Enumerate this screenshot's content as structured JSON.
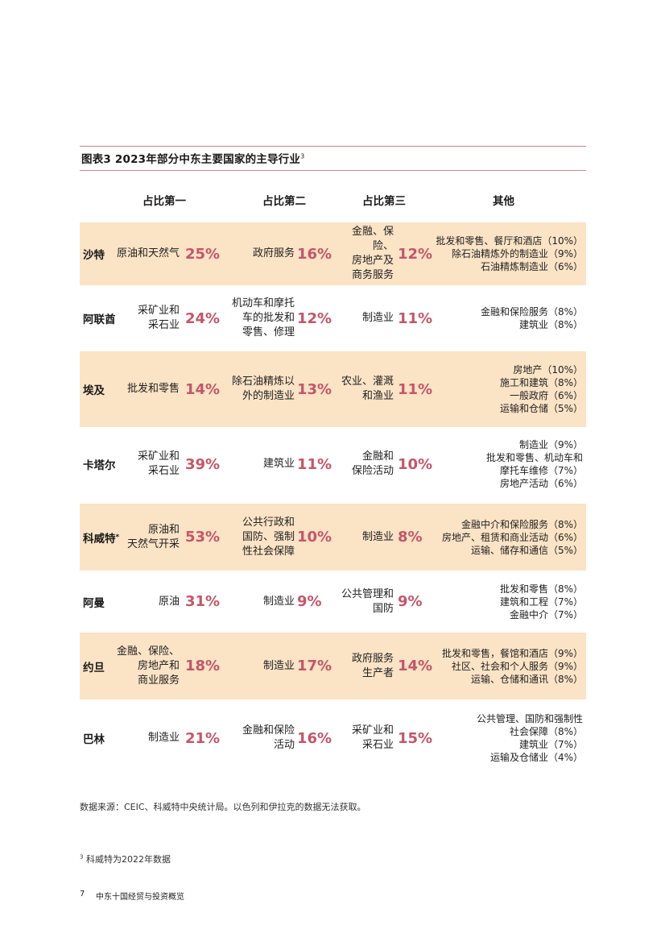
{
  "figure": {
    "title": "图表3  2023年部分中东主要国家的主导行业",
    "title_note": "3"
  },
  "columns": [
    "占比第一",
    "占比第二",
    "占比第三",
    "其他"
  ],
  "rows": [
    {
      "country": "沙特",
      "note": "",
      "first": {
        "industry": [
          "原油和天然气"
        ],
        "pct": "25%"
      },
      "second": {
        "industry": [
          "政府服务"
        ],
        "pct": "16%"
      },
      "third": {
        "industry": [
          "金融、保险、",
          "房地产及",
          "商务服务"
        ],
        "pct": "12%"
      },
      "others": [
        "批发和零售、餐厅和酒店（10%）",
        "除石油精炼外的制造业（9%）",
        "石油精炼制造业（6%）"
      ]
    },
    {
      "country": "阿联酋",
      "note": "",
      "first": {
        "industry": [
          "采矿业和",
          "采石业"
        ],
        "pct": "24%"
      },
      "second": {
        "industry": [
          "机动车和摩托",
          "车的批发和",
          "零售、修理"
        ],
        "pct": "12%"
      },
      "third": {
        "industry": [
          "制造业"
        ],
        "pct": "11%"
      },
      "others": [
        "金融和保险服务（8%）",
        "建筑业（8%）"
      ]
    },
    {
      "country": "埃及",
      "note": "",
      "first": {
        "industry": [
          "批发和零售"
        ],
        "pct": "14%"
      },
      "second": {
        "industry": [
          "除石油精炼以",
          "外的制造业"
        ],
        "pct": "13%"
      },
      "third": {
        "industry": [
          "农业、灌溉",
          "和渔业"
        ],
        "pct": "11%"
      },
      "others": [
        "房地产（10%）",
        "施工和建筑（8%）",
        "一般政府（6%）",
        "运输和仓储（5%）"
      ]
    },
    {
      "country": "卡塔尔",
      "note": "",
      "first": {
        "industry": [
          "采矿业和",
          "采石业"
        ],
        "pct": "39%"
      },
      "second": {
        "industry": [
          "建筑业"
        ],
        "pct": "11%"
      },
      "third": {
        "industry": [
          "金融和",
          "保险活动"
        ],
        "pct": "10%"
      },
      "others": [
        "制造业（9%）",
        "批发和零售、机动车和",
        "摩托车维修（7%）",
        "房地产活动（6%）"
      ]
    },
    {
      "country": "科威特",
      "note": "*",
      "first": {
        "industry": [
          "原油和",
          "天然气开采"
        ],
        "pct": "53%"
      },
      "second": {
        "industry": [
          "公共行政和",
          "国防、强制",
          "性社会保障"
        ],
        "pct": "10%"
      },
      "third": {
        "industry": [
          "制造业"
        ],
        "pct": "8%"
      },
      "others": [
        "金融中介和保险服务（8%）",
        "房地产、租赁和商业活动（6%）",
        "运输、储存和通信（5%）"
      ]
    },
    {
      "country": "阿曼",
      "note": "",
      "first": {
        "industry": [
          "原油"
        ],
        "pct": "31%"
      },
      "second": {
        "industry": [
          "制造业"
        ],
        "pct": "9%"
      },
      "third": {
        "industry": [
          "公共管理和",
          "国防"
        ],
        "pct": "9%"
      },
      "others": [
        "批发和零售（8%）",
        "建筑和工程（7%）",
        "金融中介（7%）"
      ]
    },
    {
      "country": "约旦",
      "note": "",
      "first": {
        "industry": [
          "金融、保险、",
          "房地产和",
          "商业服务"
        ],
        "pct": "18%"
      },
      "second": {
        "industry": [
          "制造业"
        ],
        "pct": "17%"
      },
      "third": {
        "industry": [
          "政府服务",
          "生产者"
        ],
        "pct": "14%"
      },
      "others": [
        "批发和零售，餐馆和酒店（9%）",
        "社区、社会和个人服务（9%）",
        "运输、仓储和通讯（8%）"
      ]
    },
    {
      "country": "巴林",
      "note": "",
      "first": {
        "industry": [
          "制造业"
        ],
        "pct": "21%"
      },
      "second": {
        "industry": [
          "金融和保险",
          "活动"
        ],
        "pct": "16%"
      },
      "third": {
        "industry": [
          "采矿业和",
          "采石业"
        ],
        "pct": "15%"
      },
      "others": [
        "公共管理、国防和强制性",
        "社会保障（8%）",
        "建筑业（7%）",
        "运输及仓储业（4%）"
      ]
    }
  ],
  "source": "数据来源：CEIC、科威特中央统计局。以色列和伊拉克的数据无法获取。",
  "footnote": {
    "mark": "3",
    "text": "科威特为2022年数据"
  },
  "footer": {
    "page_number": "7",
    "document_title": "中东十国经贸与投资概览"
  },
  "colors": {
    "accent": "#c4566a",
    "row_shade": "#fbe3c5",
    "rule": "#c9868c"
  }
}
